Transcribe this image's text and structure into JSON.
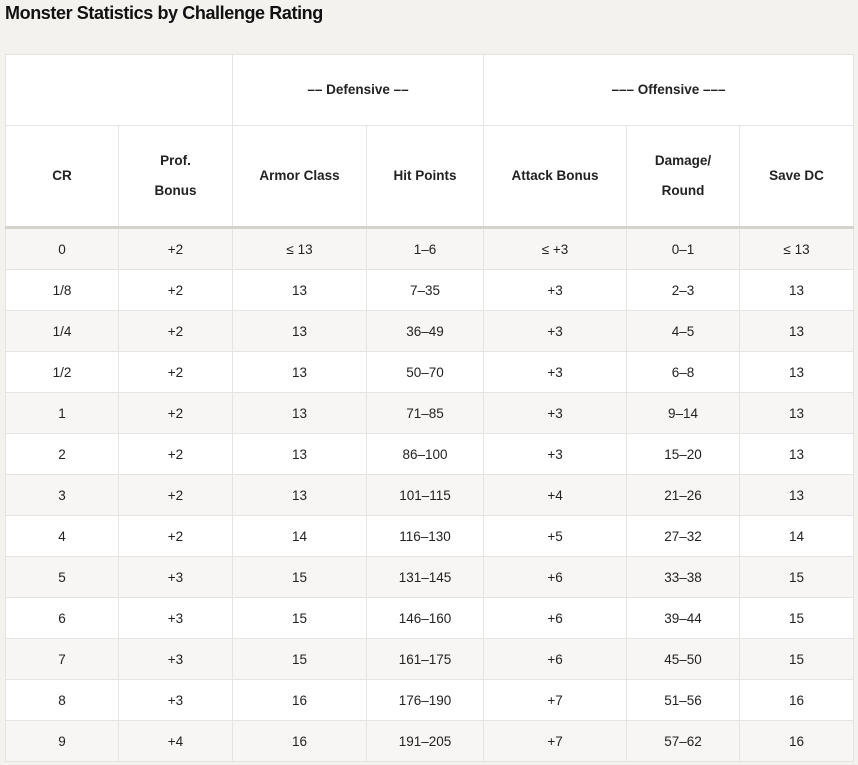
{
  "title": "Monster Statistics by Challenge Rating",
  "group_headers": {
    "blank": "",
    "defensive": "–– Defensive ––",
    "offensive": "––– Offensive –––"
  },
  "columns": [
    [
      "CR"
    ],
    [
      "Prof.",
      "Bonus"
    ],
    [
      "Armor Class"
    ],
    [
      "Hit Points"
    ],
    [
      "Attack Bonus"
    ],
    [
      "Damage/",
      "Round"
    ],
    [
      "Save DC"
    ]
  ],
  "rows": [
    [
      "0",
      "+2",
      "≤ 13",
      "1–6",
      "≤ +3",
      "0–1",
      "≤ 13"
    ],
    [
      "1/8",
      "+2",
      "13",
      "7–35",
      "+3",
      "2–3",
      "13"
    ],
    [
      "1/4",
      "+2",
      "13",
      "36–49",
      "+3",
      "4–5",
      "13"
    ],
    [
      "1/2",
      "+2",
      "13",
      "50–70",
      "+3",
      "6–8",
      "13"
    ],
    [
      "1",
      "+2",
      "13",
      "71–85",
      "+3",
      "9–14",
      "13"
    ],
    [
      "2",
      "+2",
      "13",
      "86–100",
      "+3",
      "15–20",
      "13"
    ],
    [
      "3",
      "+2",
      "13",
      "101–115",
      "+4",
      "21–26",
      "13"
    ],
    [
      "4",
      "+2",
      "14",
      "116–130",
      "+5",
      "27–32",
      "14"
    ],
    [
      "5",
      "+3",
      "15",
      "131–145",
      "+6",
      "33–38",
      "15"
    ],
    [
      "6",
      "+3",
      "15",
      "146–160",
      "+6",
      "39–44",
      "15"
    ],
    [
      "7",
      "+3",
      "15",
      "161–175",
      "+6",
      "45–50",
      "15"
    ],
    [
      "8",
      "+3",
      "16",
      "176–190",
      "+7",
      "51–56",
      "16"
    ],
    [
      "9",
      "+4",
      "16",
      "191–205",
      "+7",
      "57–62",
      "16"
    ]
  ]
}
